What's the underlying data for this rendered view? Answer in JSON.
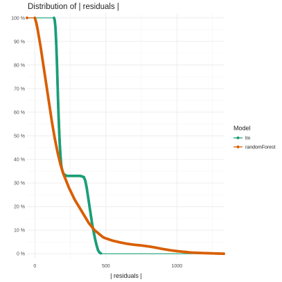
{
  "chart_data": {
    "type": "line",
    "title": "Distribution of | residuals |",
    "xlabel": "| residuals |",
    "ylabel": "",
    "xlim": [
      -55,
      1330
    ],
    "ylim": [
      -2,
      102
    ],
    "x_ticks": [
      0,
      500,
      1000
    ],
    "x_tick_labels": [
      "0",
      "500",
      "1000"
    ],
    "y_ticks": [
      0,
      10,
      20,
      30,
      40,
      50,
      60,
      70,
      80,
      90,
      100
    ],
    "y_tick_labels": [
      "0 %",
      "10 %",
      "20 %",
      "30 %",
      "40 %",
      "50 %",
      "60 %",
      "70 %",
      "80 %",
      "90 %",
      "100 %"
    ],
    "grid": true,
    "legend": {
      "title": "Model",
      "position": "right"
    },
    "series": [
      {
        "name": "lm",
        "color": "#1b9e77",
        "points": [
          [
            -55,
            100
          ],
          [
            135,
            100
          ],
          [
            140,
            99
          ],
          [
            145,
            96
          ],
          [
            150,
            90
          ],
          [
            155,
            82
          ],
          [
            160,
            72
          ],
          [
            165,
            62
          ],
          [
            170,
            54
          ],
          [
            175,
            47
          ],
          [
            180,
            42
          ],
          [
            185,
            38
          ],
          [
            190,
            36
          ],
          [
            195,
            35
          ],
          [
            200,
            34
          ],
          [
            210,
            33.5
          ],
          [
            225,
            33
          ],
          [
            290,
            33
          ],
          [
            320,
            33
          ],
          [
            345,
            32.5
          ],
          [
            355,
            31
          ],
          [
            365,
            28
          ],
          [
            375,
            24
          ],
          [
            385,
            20
          ],
          [
            395,
            16
          ],
          [
            405,
            12
          ],
          [
            415,
            9
          ],
          [
            425,
            6
          ],
          [
            435,
            3.5
          ],
          [
            445,
            1.5
          ],
          [
            455,
            0.5
          ],
          [
            470,
            0
          ],
          [
            1330,
            0
          ]
        ]
      },
      {
        "name": "randomForest",
        "color": "#d95f02",
        "points": [
          [
            -55,
            100
          ],
          [
            0,
            100
          ],
          [
            10,
            98
          ],
          [
            20,
            95
          ],
          [
            40,
            88
          ],
          [
            60,
            80
          ],
          [
            80,
            72
          ],
          [
            100,
            64
          ],
          [
            120,
            56
          ],
          [
            140,
            49
          ],
          [
            160,
            43
          ],
          [
            180,
            38
          ],
          [
            200,
            34
          ],
          [
            220,
            31
          ],
          [
            240,
            28
          ],
          [
            260,
            25.5
          ],
          [
            280,
            23
          ],
          [
            300,
            21
          ],
          [
            320,
            19
          ],
          [
            340,
            17
          ],
          [
            360,
            15
          ],
          [
            380,
            13
          ],
          [
            400,
            11.5
          ],
          [
            420,
            10
          ],
          [
            440,
            9
          ],
          [
            460,
            8
          ],
          [
            480,
            7
          ],
          [
            500,
            6.5
          ],
          [
            550,
            5.5
          ],
          [
            600,
            4.8
          ],
          [
            650,
            4.2
          ],
          [
            700,
            3.8
          ],
          [
            750,
            3.5
          ],
          [
            800,
            3.1
          ],
          [
            850,
            2.6
          ],
          [
            900,
            2
          ],
          [
            950,
            1.5
          ],
          [
            1000,
            1.1
          ],
          [
            1050,
            0.8
          ],
          [
            1100,
            0.5
          ],
          [
            1150,
            0.35
          ],
          [
            1200,
            0.25
          ],
          [
            1250,
            0.15
          ],
          [
            1300,
            0.05
          ],
          [
            1330,
            0
          ]
        ]
      }
    ]
  }
}
